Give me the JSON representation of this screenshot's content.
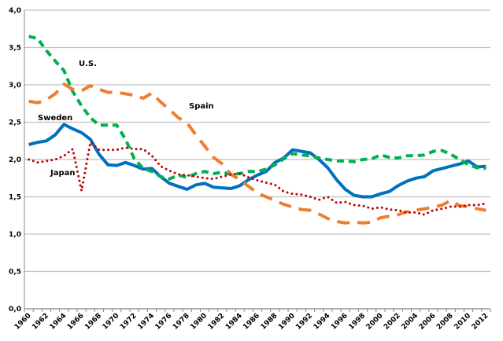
{
  "chart_data": {
    "type": "line",
    "title": "",
    "xlabel": "",
    "ylabel": "",
    "ylim": [
      0,
      4
    ],
    "yticks": [
      "0,0",
      "0,5",
      "1,0",
      "1,5",
      "2,0",
      "2,5",
      "3,0",
      "3,5",
      "4,0"
    ],
    "grid": true,
    "legend": "inline labels",
    "x": [
      1960,
      1961,
      1962,
      1963,
      1964,
      1965,
      1966,
      1967,
      1968,
      1969,
      1970,
      1971,
      1972,
      1973,
      1974,
      1975,
      1976,
      1977,
      1978,
      1979,
      1980,
      1981,
      1982,
      1983,
      1984,
      1985,
      1986,
      1987,
      1988,
      1989,
      1990,
      1991,
      1992,
      1993,
      1994,
      1995,
      1996,
      1997,
      1998,
      1999,
      2000,
      2001,
      2002,
      2003,
      2004,
      2005,
      2006,
      2007,
      2008,
      2009,
      2010,
      2011,
      2012
    ],
    "xtick_labels": [
      "1960",
      "1962",
      "1964",
      "1966",
      "1968",
      "1970",
      "1972",
      "1974",
      "1976",
      "1978",
      "1980",
      "1982",
      "1984",
      "1986",
      "1988",
      "1990",
      "1992",
      "1994",
      "1996",
      "1998",
      "2000",
      "2002",
      "2004",
      "2006",
      "2008",
      "2010",
      "2012"
    ],
    "series": [
      {
        "name": "Sweden",
        "color": "#0070C0",
        "style": "solid",
        "values": [
          2.2,
          2.23,
          2.25,
          2.33,
          2.47,
          2.41,
          2.36,
          2.27,
          2.07,
          1.93,
          1.92,
          1.96,
          1.92,
          1.87,
          1.88,
          1.77,
          1.68,
          1.64,
          1.6,
          1.66,
          1.68,
          1.63,
          1.62,
          1.61,
          1.65,
          1.73,
          1.79,
          1.84,
          1.96,
          2.02,
          2.13,
          2.11,
          2.09,
          2.0,
          1.89,
          1.73,
          1.6,
          1.52,
          1.5,
          1.5,
          1.54,
          1.57,
          1.65,
          1.71,
          1.75,
          1.77,
          1.85,
          1.88,
          1.91,
          1.94,
          1.98,
          1.9,
          1.91
        ]
      },
      {
        "name": "U.S.",
        "color": "#00B050",
        "style": "dashed",
        "values": [
          3.65,
          3.62,
          3.46,
          3.32,
          3.19,
          2.91,
          2.72,
          2.56,
          2.46,
          2.46,
          2.46,
          2.27,
          2.01,
          1.88,
          1.84,
          1.77,
          1.74,
          1.79,
          1.76,
          1.81,
          1.84,
          1.81,
          1.83,
          1.8,
          1.81,
          1.84,
          1.84,
          1.87,
          1.93,
          2.01,
          2.08,
          2.06,
          2.05,
          2.02,
          2.0,
          1.98,
          1.98,
          1.97,
          2.0,
          2.01,
          2.06,
          2.03,
          2.02,
          2.05,
          2.05,
          2.06,
          2.11,
          2.12,
          2.07,
          2.0,
          1.93,
          1.89,
          1.88
        ]
      },
      {
        "name": "Spain",
        "color": "#ED7D31",
        "style": "longdash",
        "values": [
          2.78,
          2.76,
          2.8,
          2.88,
          3.01,
          2.94,
          2.92,
          2.99,
          2.94,
          2.9,
          2.9,
          2.88,
          2.86,
          2.82,
          2.89,
          2.77,
          2.67,
          2.56,
          2.49,
          2.33,
          2.18,
          2.03,
          1.94,
          1.8,
          1.73,
          1.64,
          1.55,
          1.5,
          1.45,
          1.4,
          1.36,
          1.33,
          1.32,
          1.27,
          1.21,
          1.17,
          1.15,
          1.16,
          1.15,
          1.16,
          1.22,
          1.24,
          1.26,
          1.3,
          1.32,
          1.34,
          1.36,
          1.39,
          1.45,
          1.38,
          1.37,
          1.34,
          1.32
        ]
      },
      {
        "name": "Japan",
        "color": "#C00000",
        "style": "dotted",
        "values": [
          2.0,
          1.96,
          1.98,
          2.0,
          2.05,
          2.14,
          1.58,
          2.23,
          2.13,
          2.13,
          2.13,
          2.16,
          2.14,
          2.14,
          2.05,
          1.91,
          1.85,
          1.8,
          1.79,
          1.77,
          1.75,
          1.74,
          1.77,
          1.8,
          1.81,
          1.76,
          1.72,
          1.69,
          1.66,
          1.57,
          1.54,
          1.53,
          1.5,
          1.46,
          1.5,
          1.42,
          1.43,
          1.39,
          1.38,
          1.34,
          1.36,
          1.33,
          1.32,
          1.29,
          1.29,
          1.26,
          1.32,
          1.34,
          1.37,
          1.37,
          1.39,
          1.39,
          1.41
        ]
      }
    ]
  }
}
